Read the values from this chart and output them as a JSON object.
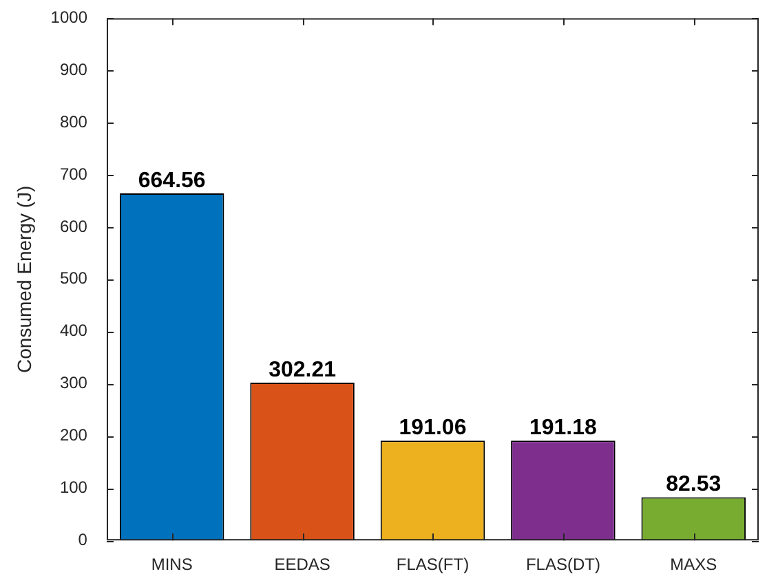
{
  "chart_data": {
    "type": "bar",
    "ylabel": "Consumed Energy (J)",
    "categories": [
      "MINS",
      "EEDAS",
      "FLAS(FT)",
      "FLAS(DT)",
      "MAXS"
    ],
    "values": [
      664.56,
      302.21,
      191.06,
      191.18,
      82.53
    ],
    "colors": [
      "#0072bd",
      "#d95319",
      "#edb120",
      "#7e2f8e",
      "#77ac30"
    ],
    "ylim": [
      0,
      1000
    ],
    "yticks": [
      0,
      100,
      200,
      300,
      400,
      500,
      600,
      700,
      800,
      900,
      1000
    ],
    "data_labels": true
  }
}
